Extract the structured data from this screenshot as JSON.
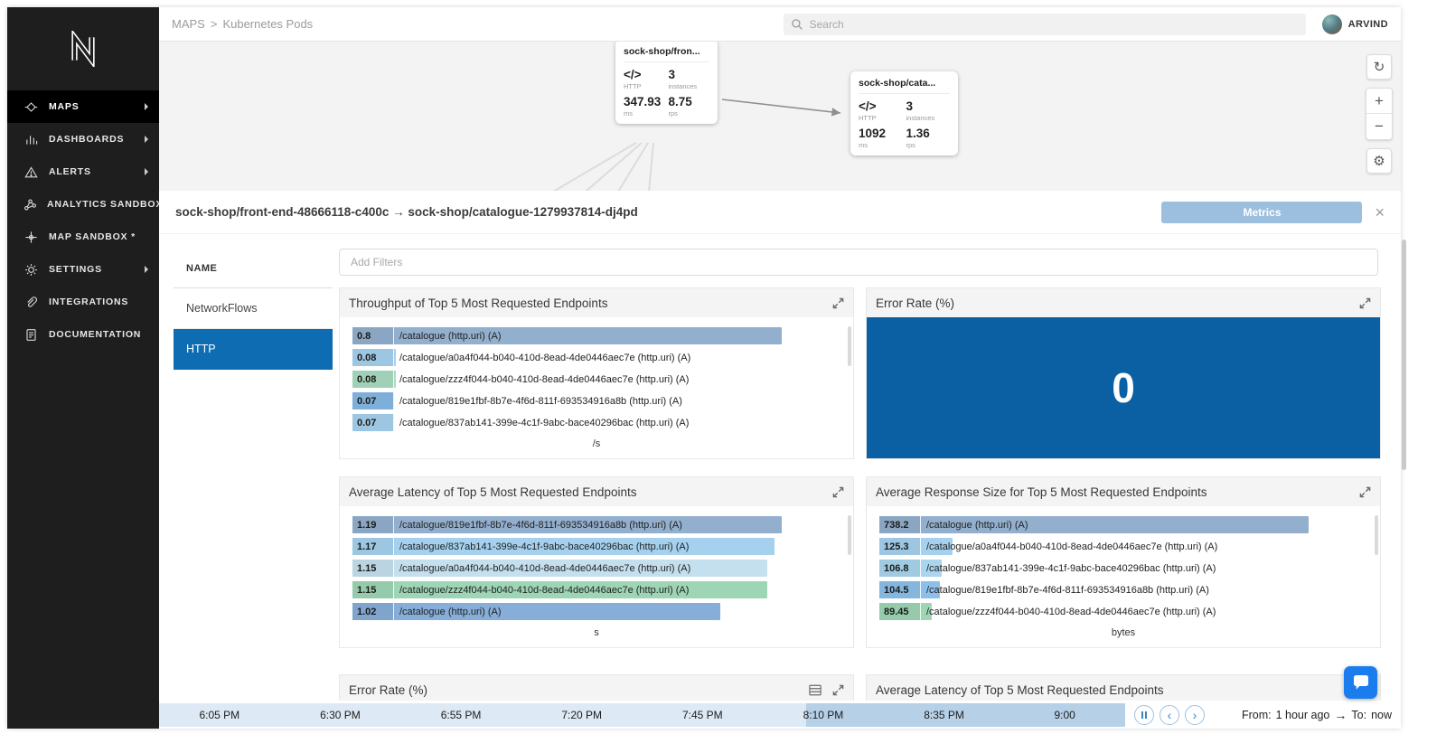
{
  "icons": {
    "code": "</>",
    "refresh": "↻",
    "zoom_in": "+",
    "zoom_out": "−",
    "gear": "⚙",
    "close": "×",
    "prev": "‹",
    "next": "›",
    "range_arrow": "→"
  },
  "sidebar": {
    "items": [
      {
        "label": "MAPS"
      },
      {
        "label": "DASHBOARDS"
      },
      {
        "label": "ALERTS"
      },
      {
        "label": "ANALYTICS SANDBOX"
      },
      {
        "label": "MAP SANDBOX *"
      },
      {
        "label": "SETTINGS"
      },
      {
        "label": "INTEGRATIONS"
      },
      {
        "label": "DOCUMENTATION"
      }
    ]
  },
  "header": {
    "breadcrumb_section": "MAPS",
    "breadcrumb_separator": ">",
    "breadcrumb_page": "Kubernetes Pods",
    "search_placeholder": "Search",
    "username": "ARVIND"
  },
  "map": {
    "nodes": [
      {
        "title": "sock-shop/fron...",
        "protocol": "HTTP",
        "instances": "3",
        "instances_label": "instances",
        "latency": "347.93",
        "latency_unit": "ms",
        "rate": "8.75",
        "rate_unit": "rps"
      },
      {
        "title": "sock-shop/cata...",
        "protocol": "HTTP",
        "instances": "3",
        "instances_label": "instances",
        "latency": "1092",
        "latency_unit": "ms",
        "rate": "1.36",
        "rate_unit": "rps"
      }
    ]
  },
  "detail": {
    "title": "sock-shop/front-end-48666118-c400c → sock-shop/catalogue-1279937814-dj4pd",
    "metrics_button": "Metrics",
    "list_header": "NAME",
    "tabs": [
      {
        "label": "NetworkFlows"
      },
      {
        "label": "HTTP"
      }
    ],
    "filters_placeholder": "Add Filters"
  },
  "chart_data": [
    {
      "type": "bar",
      "orientation": "horizontal",
      "title": "Throughput of Top 5 Most Requested Endpoints",
      "xlabel": "/s",
      "rows": [
        {
          "value": "0.8",
          "label": "/catalogue (http.uri) (A)",
          "color": "#93afce"
        },
        {
          "value": "0.08",
          "label": "/catalogue/a0a4f044-b040-410d-8ead-4de0446aec7e (http.uri) (A)",
          "color": "#a5d1ef"
        },
        {
          "value": "0.08",
          "label": "/catalogue/zzz4f044-b040-410d-8ead-4de0446aec7e (http.uri) (A)",
          "color": "#a9dcc1"
        },
        {
          "value": "0.07",
          "label": "/catalogue/819e1fbf-8b7e-4f6d-811f-693534916a8b (http.uri) (A)",
          "color": "#85b9e5"
        },
        {
          "value": "0.07",
          "label": "/catalogue/837ab141-399e-4c1f-9abc-bace40296bac (http.uri) (A)",
          "color": "#a5d1ef"
        }
      ]
    },
    {
      "type": "single_value",
      "title": "Error Rate (%)",
      "value": "0",
      "panel_color": "#0b5fa3"
    },
    {
      "type": "bar",
      "orientation": "horizontal",
      "title": "Average Latency of Top 5 Most Requested Endpoints",
      "xlabel": "s",
      "rows": [
        {
          "value": "1.19",
          "label": "/catalogue/819e1fbf-8b7e-4f6d-811f-693534916a8b (http.uri) (A)",
          "color": "#93afce"
        },
        {
          "value": "1.17",
          "label": "/catalogue/837ab141-399e-4c1f-9abc-bace40296bac (http.uri) (A)",
          "color": "#a5d1ef"
        },
        {
          "value": "1.15",
          "label": "/catalogue/a0a4f044-b040-410d-8ead-4de0446aec7e (http.uri) (A)",
          "color": "#c4e0ee"
        },
        {
          "value": "1.15",
          "label": "/catalogue/zzz4f044-b040-410d-8ead-4de0446aec7e (http.uri) (A)",
          "color": "#9dd5b5"
        },
        {
          "value": "1.02",
          "label": "/catalogue (http.uri) (A)",
          "color": "#86aed8"
        }
      ]
    },
    {
      "type": "bar",
      "orientation": "horizontal",
      "title": "Average Response Size for Top 5 Most Requested Endpoints",
      "xlabel": "bytes",
      "rows": [
        {
          "value": "738.2",
          "label": "/catalogue (http.uri) (A)",
          "color": "#93afce"
        },
        {
          "value": "125.3",
          "label": "/catalogue/a0a4f044-b040-410d-8ead-4de0446aec7e (http.uri) (A)",
          "color": "#a5d1ef"
        },
        {
          "value": "106.8",
          "label": "/catalogue/837ab141-399e-4c1f-9abc-bace40296bac (http.uri) (A)",
          "color": "#a9d5ee"
        },
        {
          "value": "104.5",
          "label": "/catalogue/819e1fbf-8b7e-4f6d-811f-693534916a8b (http.uri) (A)",
          "color": "#8cc0ea"
        },
        {
          "value": "89.45",
          "label": "/catalogue/zzz4f044-b040-410d-8ead-4de0446aec7e (http.uri) (A)",
          "color": "#9dd5b5"
        }
      ]
    }
  ],
  "partial_panels": [
    {
      "title": "Error Rate (%)"
    },
    {
      "title": "Average Latency of Top 5 Most Requested Endpoints"
    }
  ],
  "timeline": {
    "ticks": [
      "6:05 PM",
      "6:30 PM",
      "6:55 PM",
      "7:20 PM",
      "7:45 PM",
      "8:10 PM",
      "8:35 PM",
      "9:00"
    ],
    "from_label": "From:",
    "from_value": "1 hour ago",
    "to_label": "To:",
    "to_value": "now"
  }
}
